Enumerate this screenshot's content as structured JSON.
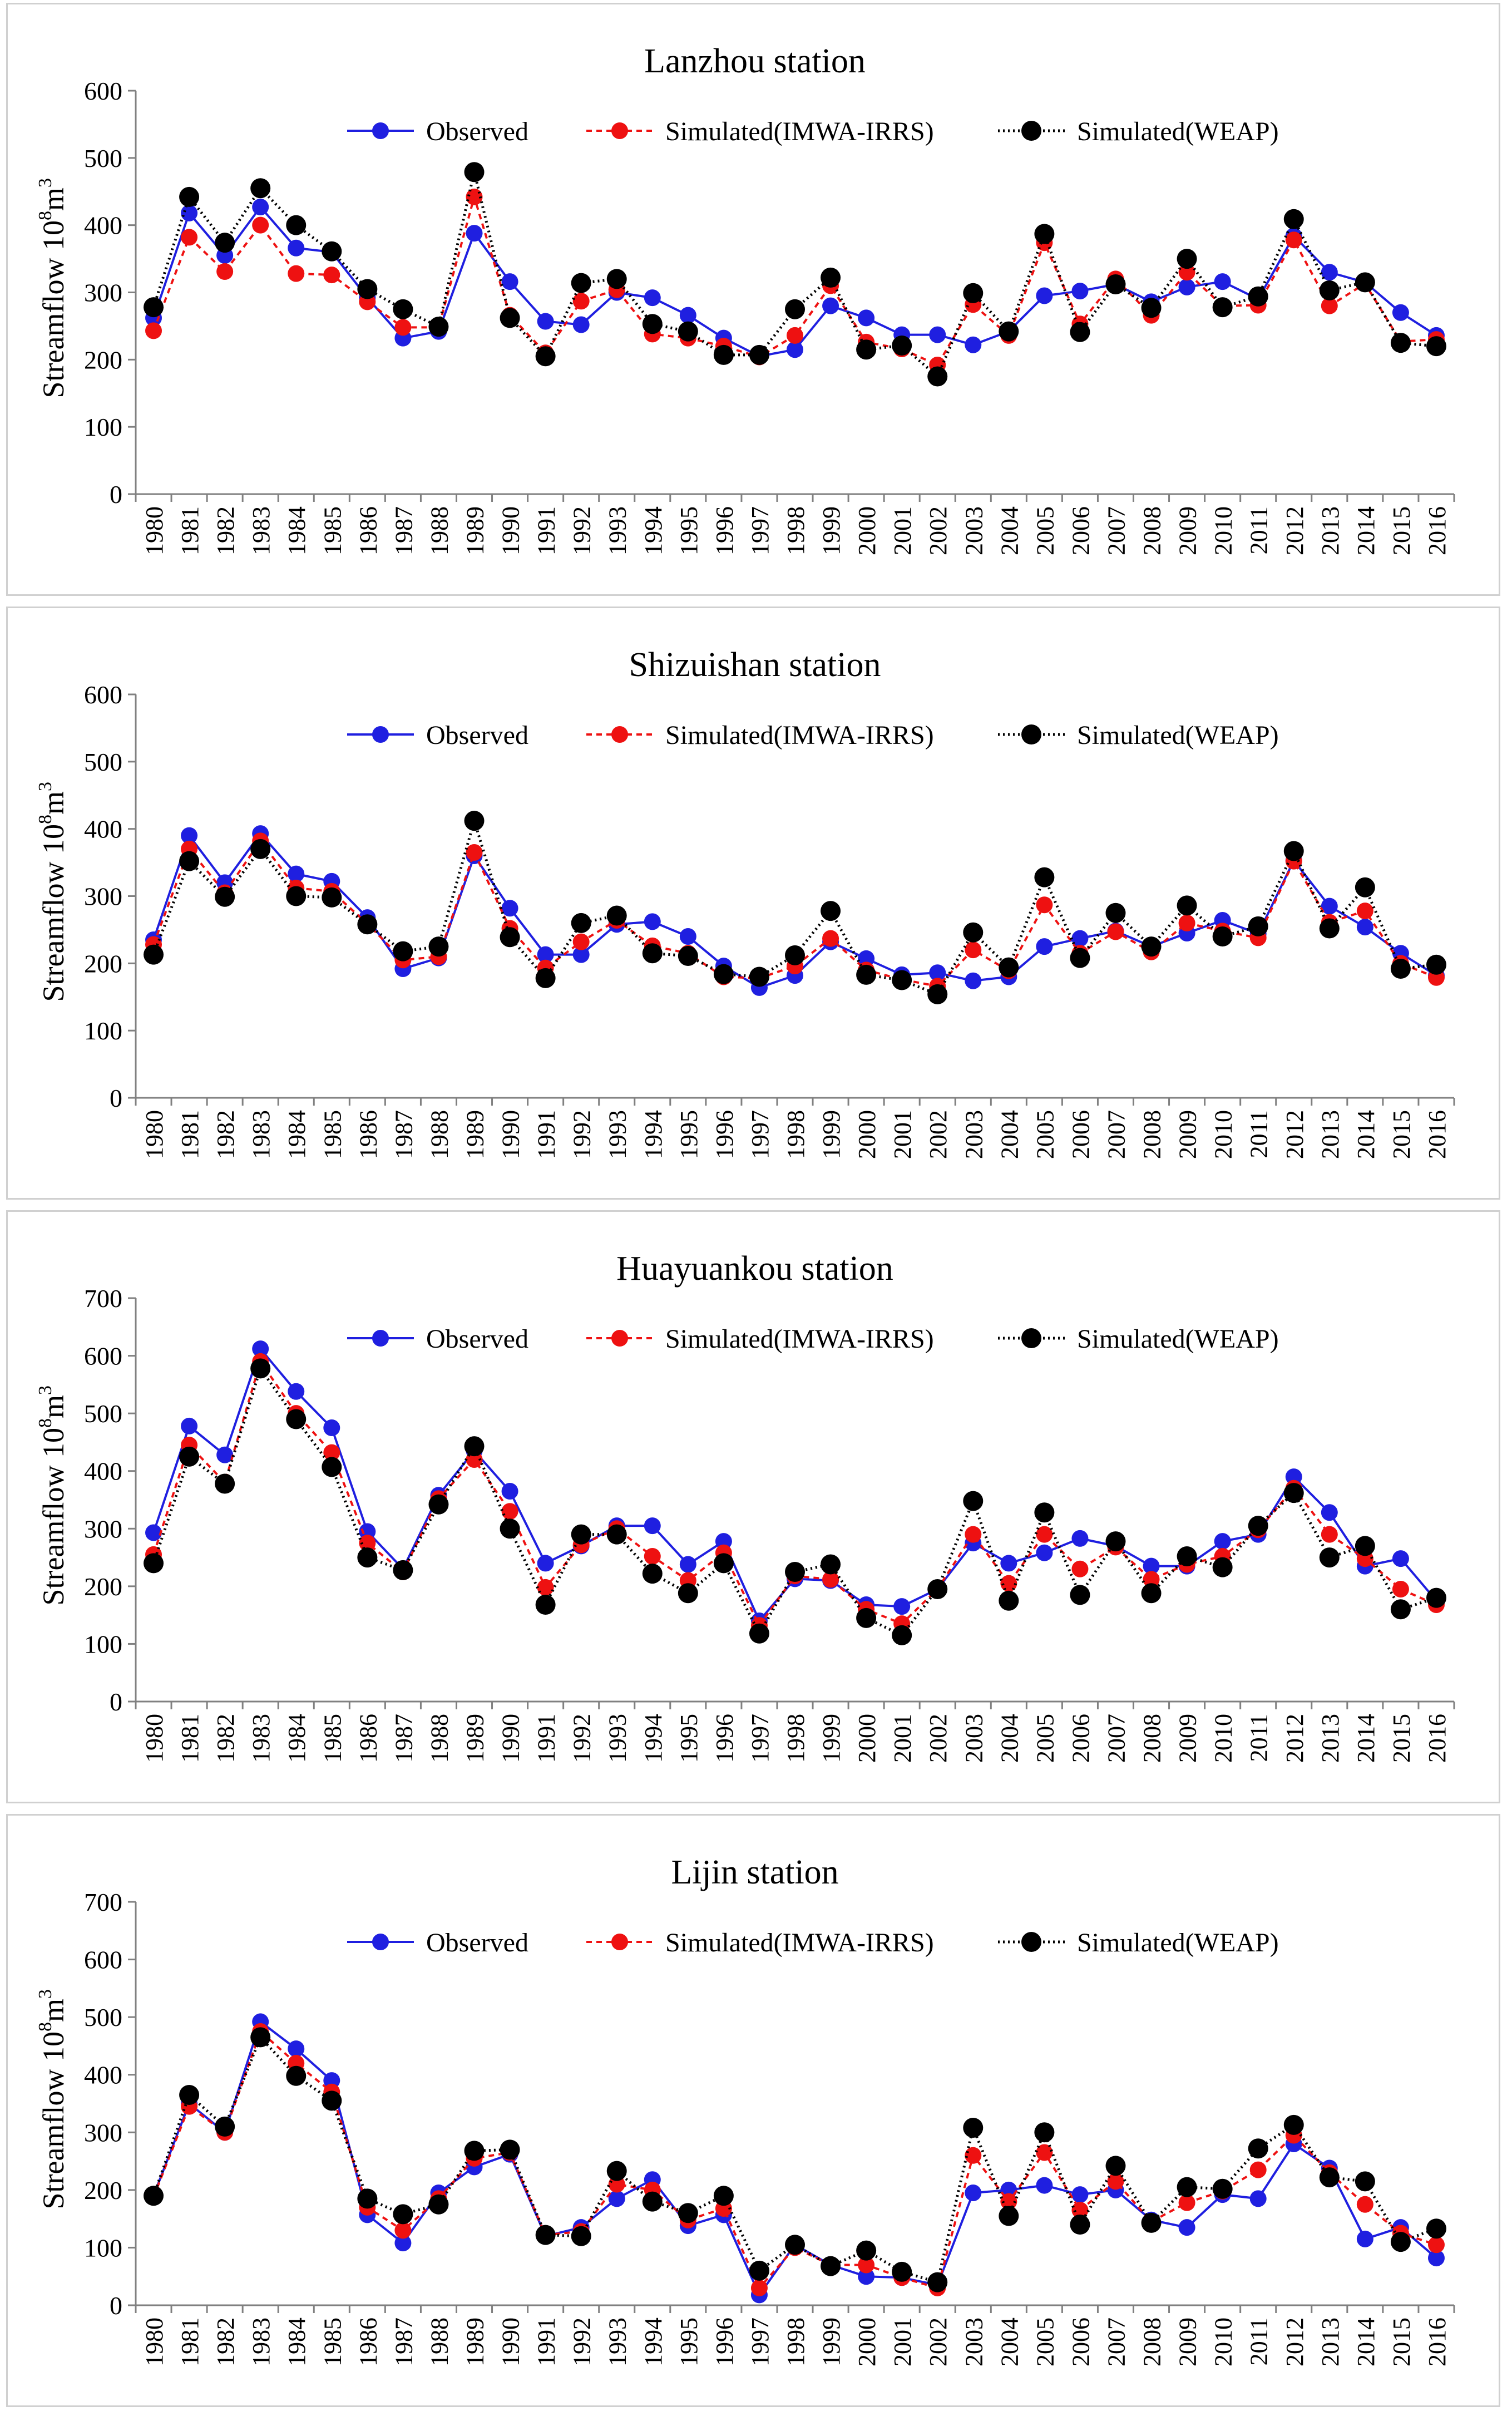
{
  "chart_data": [
    {
      "type": "line",
      "title": "Lanzhou station",
      "ylabel": "Streamflow",
      "yunit_base": "10",
      "yunit_exp": "8",
      "yunit_unit": "m",
      "yunit_unit_exp": "3",
      "ylim": [
        0,
        600
      ],
      "ystep": 100,
      "categories": [
        "1980",
        "1981",
        "1982",
        "1983",
        "1984",
        "1985",
        "1986",
        "1987",
        "1988",
        "1989",
        "1990",
        "1991",
        "1992",
        "1993",
        "1994",
        "1995",
        "1996",
        "1997",
        "1998",
        "1999",
        "2000",
        "2001",
        "2002",
        "2003",
        "2004",
        "2005",
        "2006",
        "2007",
        "2008",
        "2009",
        "2010",
        "2011",
        "2012",
        "2013",
        "2014",
        "2015",
        "2016"
      ],
      "series": [
        {
          "name": "Observed",
          "color": "#1f1fe0",
          "values": [
            262,
            418,
            355,
            427,
            366,
            360,
            292,
            232,
            242,
            388,
            316,
            257,
            252,
            300,
            292,
            266,
            232,
            205,
            215,
            280,
            262,
            237,
            237,
            222,
            242,
            295,
            302,
            312,
            286,
            308,
            316,
            290,
            384,
            330,
            315,
            270,
            236
          ]
        },
        {
          "name": "Simulated(IMWA-IRRS)",
          "color": "#ee1111",
          "values": [
            243,
            382,
            331,
            400,
            328,
            326,
            286,
            248,
            248,
            442,
            266,
            210,
            287,
            304,
            238,
            232,
            220,
            204,
            236,
            310,
            226,
            216,
            192,
            282,
            236,
            374,
            253,
            320,
            266,
            330,
            280,
            281,
            378,
            280,
            313,
            227,
            230
          ]
        },
        {
          "name": "Simulated(WEAP)",
          "color": "#000000",
          "values": [
            278,
            442,
            374,
            455,
            400,
            361,
            305,
            275,
            249,
            479,
            262,
            205,
            314,
            320,
            253,
            242,
            207,
            207,
            275,
            322,
            215,
            221,
            175,
            299,
            242,
            387,
            241,
            312,
            277,
            350,
            278,
            294,
            409,
            303,
            315,
            225,
            220
          ]
        }
      ]
    },
    {
      "type": "line",
      "title": "Shizuishan station",
      "ylabel": "Streamflow",
      "yunit_base": "10",
      "yunit_exp": "8",
      "yunit_unit": "m",
      "yunit_unit_exp": "3",
      "ylim": [
        0,
        600
      ],
      "ystep": 100,
      "categories": [
        "1980",
        "1981",
        "1982",
        "1983",
        "1984",
        "1985",
        "1986",
        "1987",
        "1988",
        "1989",
        "1990",
        "1991",
        "1992",
        "1993",
        "1994",
        "1995",
        "1996",
        "1997",
        "1998",
        "1999",
        "2000",
        "2001",
        "2002",
        "2003",
        "2004",
        "2005",
        "2006",
        "2007",
        "2008",
        "2009",
        "2010",
        "2011",
        "2012",
        "2013",
        "2014",
        "2015",
        "2016"
      ],
      "series": [
        {
          "name": "Observed",
          "color": "#1f1fe0",
          "values": [
            235,
            390,
            320,
            393,
            333,
            322,
            268,
            192,
            208,
            360,
            282,
            213,
            213,
            258,
            262,
            240,
            196,
            164,
            182,
            232,
            207,
            183,
            186,
            174,
            180,
            225,
            237,
            248,
            225,
            245,
            264,
            244,
            353,
            285,
            254,
            215,
            182
          ]
        },
        {
          "name": "Simulated(IMWA-IRRS)",
          "color": "#ee1111",
          "values": [
            228,
            370,
            305,
            382,
            312,
            307,
            259,
            205,
            210,
            365,
            252,
            193,
            232,
            264,
            226,
            215,
            180,
            178,
            196,
            237,
            190,
            176,
            166,
            220,
            189,
            287,
            215,
            247,
            217,
            260,
            248,
            238,
            352,
            261,
            278,
            200,
            179
          ]
        },
        {
          "name": "Simulated(WEAP)",
          "color": "#000000",
          "values": [
            213,
            352,
            299,
            370,
            300,
            298,
            258,
            218,
            225,
            412,
            239,
            178,
            260,
            271,
            215,
            211,
            184,
            180,
            212,
            278,
            183,
            175,
            154,
            246,
            194,
            328,
            208,
            275,
            225,
            286,
            240,
            255,
            367,
            252,
            313,
            192,
            198
          ]
        }
      ]
    },
    {
      "type": "line",
      "title": "Huayuankou station",
      "ylabel": "Streamflow",
      "yunit_base": "10",
      "yunit_exp": "8",
      "yunit_unit": "m",
      "yunit_unit_exp": "3",
      "ylim": [
        0,
        700
      ],
      "ystep": 100,
      "categories": [
        "1980",
        "1981",
        "1982",
        "1983",
        "1984",
        "1985",
        "1986",
        "1987",
        "1988",
        "1989",
        "1990",
        "1991",
        "1992",
        "1993",
        "1994",
        "1995",
        "1996",
        "1997",
        "1998",
        "1999",
        "2000",
        "2001",
        "2002",
        "2003",
        "2004",
        "2005",
        "2006",
        "2007",
        "2008",
        "2009",
        "2010",
        "2011",
        "2012",
        "2013",
        "2014",
        "2015",
        "2016"
      ],
      "series": [
        {
          "name": "Observed",
          "color": "#1f1fe0",
          "values": [
            293,
            478,
            428,
            612,
            538,
            475,
            295,
            230,
            358,
            435,
            365,
            240,
            270,
            305,
            305,
            238,
            278,
            140,
            213,
            210,
            168,
            165,
            195,
            275,
            240,
            258,
            283,
            270,
            235,
            235,
            278,
            290,
            390,
            328,
            235,
            248,
            175
          ]
        },
        {
          "name": "Simulated(IMWA-IRRS)",
          "color": "#ee1111",
          "values": [
            255,
            445,
            380,
            590,
            500,
            432,
            275,
            225,
            352,
            420,
            330,
            198,
            272,
            300,
            252,
            210,
            258,
            132,
            218,
            212,
            160,
            135,
            195,
            290,
            205,
            290,
            230,
            268,
            212,
            238,
            252,
            298,
            370,
            290,
            248,
            195,
            168
          ]
        },
        {
          "name": "Simulated(WEAP)",
          "color": "#000000",
          "values": [
            240,
            425,
            378,
            578,
            490,
            407,
            250,
            228,
            342,
            443,
            300,
            168,
            290,
            290,
            222,
            188,
            240,
            118,
            225,
            238,
            145,
            115,
            195,
            348,
            175,
            328,
            185,
            278,
            188,
            252,
            233,
            305,
            362,
            250,
            270,
            160,
            180
          ]
        }
      ]
    },
    {
      "type": "line",
      "title": "Lijin station",
      "ylabel": "Streamflow",
      "yunit_base": "10",
      "yunit_exp": "8",
      "yunit_unit": "m",
      "yunit_unit_exp": "3",
      "ylim": [
        0,
        700
      ],
      "ystep": 100,
      "categories": [
        "1980",
        "1981",
        "1982",
        "1983",
        "1984",
        "1985",
        "1986",
        "1987",
        "1988",
        "1989",
        "1990",
        "1991",
        "1992",
        "1993",
        "1994",
        "1995",
        "1996",
        "1997",
        "1998",
        "1999",
        "2000",
        "2001",
        "2002",
        "2003",
        "2004",
        "2005",
        "2006",
        "2007",
        "2008",
        "2009",
        "2010",
        "2011",
        "2012",
        "2013",
        "2014",
        "2015",
        "2016"
      ],
      "series": [
        {
          "name": "Observed",
          "color": "#1f1fe0",
          "values": [
            190,
            350,
            300,
            492,
            445,
            390,
            157,
            108,
            195,
            240,
            262,
            120,
            135,
            185,
            218,
            138,
            157,
            18,
            105,
            70,
            50,
            48,
            35,
            195,
            200,
            208,
            192,
            200,
            148,
            135,
            192,
            185,
            280,
            238,
            115,
            135,
            82
          ]
        },
        {
          "name": "Simulated(IMWA-IRRS)",
          "color": "#ee1111",
          "values": [
            188,
            345,
            300,
            475,
            420,
            370,
            170,
            130,
            185,
            255,
            265,
            122,
            128,
            210,
            200,
            148,
            168,
            30,
            100,
            70,
            70,
            48,
            30,
            260,
            180,
            265,
            165,
            215,
            145,
            178,
            198,
            235,
            295,
            230,
            175,
            125,
            105
          ]
        },
        {
          "name": "Simulated(WEAP)",
          "color": "#000000",
          "values": [
            190,
            365,
            310,
            465,
            398,
            355,
            185,
            158,
            175,
            268,
            270,
            122,
            120,
            233,
            180,
            160,
            190,
            60,
            105,
            68,
            95,
            58,
            40,
            308,
            155,
            300,
            140,
            242,
            143,
            205,
            202,
            272,
            313,
            222,
            215,
            110,
            133
          ]
        }
      ]
    }
  ]
}
